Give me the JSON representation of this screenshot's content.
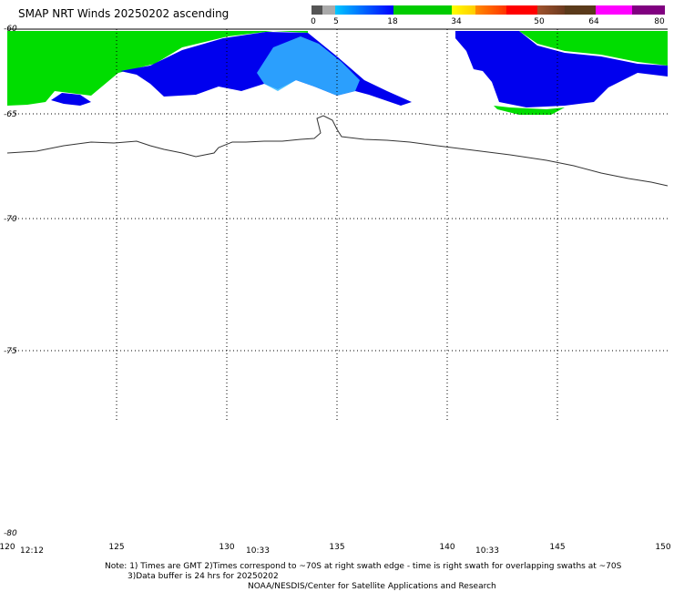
{
  "title": "SMAP NRT Winds 20250202 ascending",
  "colorbar": {
    "ticks": [
      "0",
      "5",
      "18",
      "34",
      "50",
      "64",
      "80"
    ],
    "colors": [
      "#555555",
      "#aaaaaa",
      "#00c8ff",
      "#0000ff",
      "#00cc00",
      "#ffff00",
      "#ff8c00",
      "#ff0000",
      "#8b4513",
      "#5a3a1a",
      "#ff00ff",
      "#800080"
    ]
  },
  "lat_labels": [
    "-60",
    "-65",
    "-70",
    "-75",
    "-80"
  ],
  "lon_labels": [
    "120",
    "125",
    "130",
    "135",
    "140",
    "145",
    "150"
  ],
  "time_labels": [
    "12:12",
    "10:33",
    "10:33"
  ],
  "notes": {
    "line1": "Note: 1) Times are GMT 2)Times correspond to ~70S at right swath edge - time is right swath for overlapping swaths at ~70S",
    "line2": "3)Data buffer is 24 hrs for 20250202",
    "line3": "NOAA/NESDIS/Center for Satellite Applications and Research"
  },
  "wind_colors": {
    "green": "#00dd00",
    "blue": "#0000ee",
    "lightblue": "#33bbff"
  }
}
